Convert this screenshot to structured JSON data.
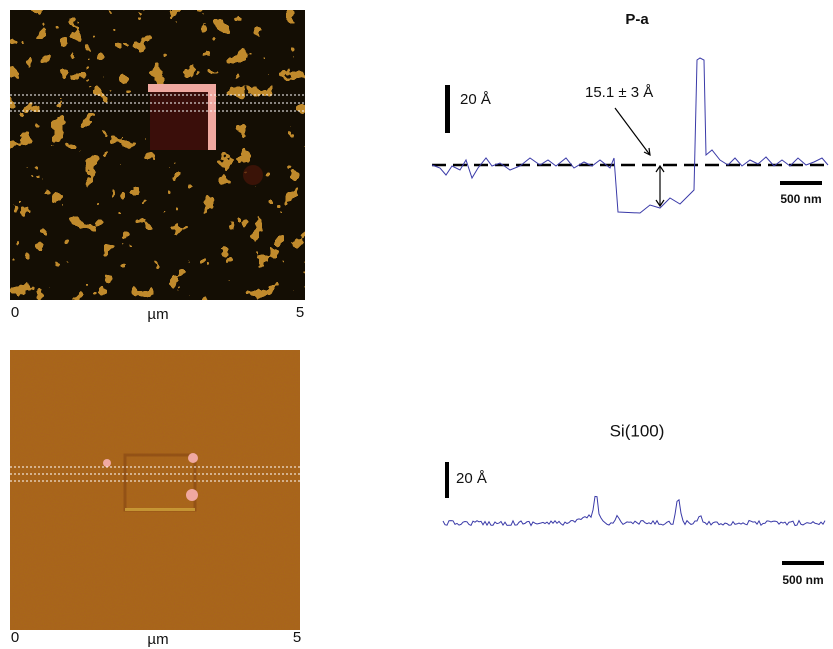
{
  "panels": [
    {
      "image": {
        "axis_start": "0",
        "axis_unit": "µm",
        "axis_end": "5"
      },
      "profile": {
        "title": "P-a",
        "height_scale": "20 Å",
        "annotation": "15.1 ± 3 Å",
        "length_scale": "500 nm"
      }
    },
    {
      "image": {
        "axis_start": "0",
        "axis_unit": "µm",
        "axis_end": "5"
      },
      "profile": {
        "title": "Si(100)",
        "height_scale": "20 Å",
        "length_scale": "500 nm"
      }
    }
  ]
}
